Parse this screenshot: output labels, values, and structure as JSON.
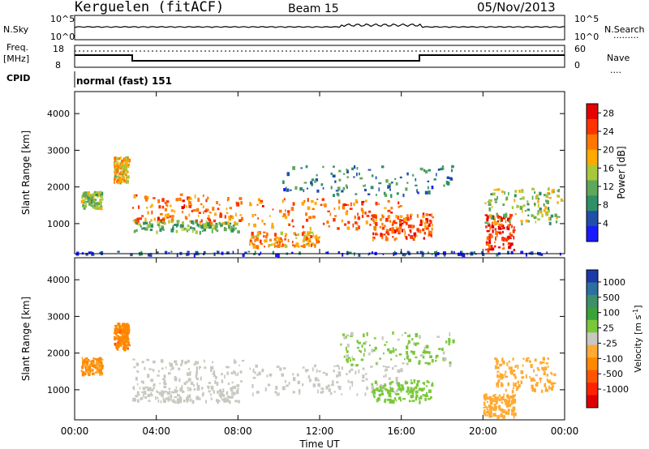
{
  "header": {
    "station": "Kerguelen (fitACF)",
    "beam": "Beam 15",
    "date": "05/Nov/2013"
  },
  "strip_labels": {
    "nsky": "N.Sky",
    "nsearch": "N.Search",
    "nsearch_dots": ".........",
    "nsky_top": "10^5",
    "nsky_bottom": "10^0",
    "nsearch_top": "10^5",
    "nsearch_bottom": "10^0",
    "freq_l1": "Freq.",
    "freq_l2": "[MHz]",
    "freq_top": "18",
    "freq_bottom": "8",
    "nave": "Nave",
    "nave_dots": "....",
    "nave_top": "60",
    "nave_bottom": "0",
    "cpid": "CPID",
    "cpid_value": "normal (fast) 151"
  },
  "colors": {
    "power": [
      "#1a1aff",
      "#1f4fa8",
      "#2f8f66",
      "#5fa85a",
      "#a8c83a",
      "#ffaa00",
      "#ff7700",
      "#ff3300",
      "#e60000"
    ],
    "velocity": [
      "#1a3aa8",
      "#2d6fa0",
      "#3f8f6a",
      "#3aa23a",
      "#7ac83a",
      "#c8c8c0",
      "#ffaa33",
      "#ff8800",
      "#ff5500",
      "#ff2200",
      "#dd0000"
    ]
  },
  "chart_data": [
    {
      "type": "heatmap",
      "title": "Power",
      "xlabel": "Time UT",
      "ylabel": "Slant Range [km]",
      "xlim": [
        "00:00",
        "24:00"
      ],
      "ylim": [
        180,
        4600
      ],
      "x_ticks": [
        "00:00",
        "04:00",
        "08:00",
        "12:00",
        "16:00",
        "20:00",
        "00:00"
      ],
      "y_ticks": [
        "1000",
        "2000",
        "3000",
        "4000"
      ],
      "colorbar": {
        "label": "Power [dB]",
        "ticks": [
          "4",
          "8",
          "12",
          "16",
          "20",
          "24",
          "28"
        ],
        "range": [
          0,
          30
        ]
      },
      "bands": [
        {
          "t": [
            0.3,
            1.3
          ],
          "r": [
            1450,
            1900
          ],
          "value": 14
        },
        {
          "t": [
            1.9,
            2.6
          ],
          "r": [
            2150,
            2850
          ],
          "value": 18
        },
        {
          "t": [
            2.8,
            8.2
          ],
          "r": [
            1050,
            1850
          ],
          "value": 22
        },
        {
          "t": [
            2.8,
            8.0
          ],
          "r": [
            800,
            1100
          ],
          "value": 12
        },
        {
          "t": [
            8.5,
            16.0
          ],
          "r": [
            900,
            1700
          ],
          "value": 22
        },
        {
          "t": [
            8.5,
            12.0
          ],
          "r": [
            400,
            800
          ],
          "value": 20
        },
        {
          "t": [
            14.5,
            17.5
          ],
          "r": [
            600,
            1300
          ],
          "value": 24
        },
        {
          "t": [
            10.0,
            18.5
          ],
          "r": [
            1800,
            2600
          ],
          "value": 8
        },
        {
          "t": [
            20.0,
            21.5
          ],
          "r": [
            300,
            1300
          ],
          "value": 26
        },
        {
          "t": [
            20.0,
            23.8
          ],
          "r": [
            1000,
            2000
          ],
          "value": 14
        },
        {
          "t": [
            0.0,
            24.0
          ],
          "r": [
            180,
            260
          ],
          "value": 4
        }
      ]
    },
    {
      "type": "heatmap",
      "title": "Velocity",
      "xlabel": "Time UT",
      "ylabel": "Slant Range [km]",
      "xlim": [
        "00:00",
        "24:00"
      ],
      "ylim": [
        180,
        4600
      ],
      "x_ticks": [
        "00:00",
        "04:00",
        "08:00",
        "12:00",
        "16:00",
        "20:00",
        "00:00"
      ],
      "y_ticks": [
        "1000",
        "2000",
        "3000",
        "4000"
      ],
      "colorbar": {
        "label": "Velocity [m s^-1]",
        "ticks": [
          "1000",
          "500",
          "100",
          "25",
          "-25",
          "-100",
          "-500",
          "-1000"
        ],
        "range": [
          -1000,
          1000
        ]
      },
      "bands": [
        {
          "t": [
            0.3,
            1.3
          ],
          "r": [
            1450,
            1900
          ],
          "value": -300
        },
        {
          "t": [
            1.9,
            2.6
          ],
          "r": [
            2150,
            2850
          ],
          "value": -400
        },
        {
          "t": [
            2.8,
            8.2
          ],
          "r": [
            1050,
            1850
          ],
          "value": 0
        },
        {
          "t": [
            2.8,
            8.0
          ],
          "r": [
            700,
            1100
          ],
          "value": 0
        },
        {
          "t": [
            8.5,
            16.0
          ],
          "r": [
            900,
            1700
          ],
          "value": 0
        },
        {
          "t": [
            14.5,
            17.5
          ],
          "r": [
            700,
            1300
          ],
          "value": 150
        },
        {
          "t": [
            13.0,
            18.5
          ],
          "r": [
            1700,
            2600
          ],
          "value": 120
        },
        {
          "t": [
            20.0,
            21.5
          ],
          "r": [
            300,
            900
          ],
          "value": -200
        },
        {
          "t": [
            20.5,
            23.5
          ],
          "r": [
            1000,
            1900
          ],
          "value": -150
        }
      ]
    }
  ]
}
